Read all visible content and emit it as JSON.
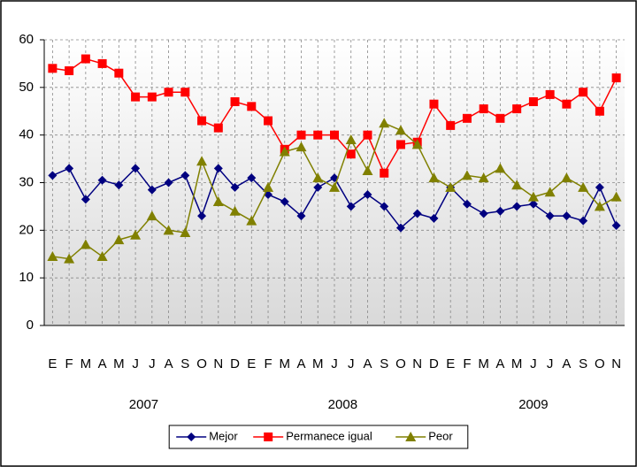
{
  "chart_data": {
    "type": "line",
    "categories": [
      "E",
      "F",
      "M",
      "A",
      "M",
      "J",
      "J",
      "A",
      "S",
      "O",
      "N",
      "D",
      "E",
      "F",
      "M",
      "A",
      "M",
      "J",
      "J",
      "A",
      "S",
      "O",
      "N",
      "D",
      "E",
      "F",
      "M",
      "A",
      "M",
      "J",
      "J",
      "A",
      "S",
      "O",
      "N"
    ],
    "x_groups": [
      "2007",
      "2008",
      "2009"
    ],
    "ylim": [
      0,
      60
    ],
    "yticks": [
      0,
      10,
      20,
      30,
      40,
      50,
      60
    ],
    "grid": true,
    "legend": "bottom",
    "series": [
      {
        "name": "Mejor",
        "color": "#000080",
        "marker": "diamond",
        "values": [
          31.5,
          33,
          26.5,
          30.5,
          29.5,
          33,
          28.5,
          30,
          31.5,
          23,
          33,
          29,
          31,
          27.5,
          26,
          23,
          29,
          31,
          25,
          27.5,
          25,
          20.5,
          23.5,
          22.5,
          29,
          25.5,
          23.5,
          24,
          25,
          25.5,
          23,
          23,
          22,
          29,
          21
        ]
      },
      {
        "name": "Permanece igual",
        "color": "#ff0000",
        "marker": "square",
        "values": [
          54,
          53.5,
          56,
          55,
          53,
          48,
          48,
          49,
          49,
          43,
          41.5,
          47,
          46,
          43,
          37,
          40,
          40,
          40,
          36,
          40,
          32,
          38,
          38.5,
          46.5,
          42,
          43.5,
          45.5,
          43.5,
          45.5,
          47,
          48.5,
          46.5,
          49,
          45,
          52
        ]
      },
      {
        "name": "Peor",
        "color": "#808000",
        "marker": "triangle",
        "values": [
          14.5,
          14,
          17,
          14.5,
          18,
          19,
          23,
          20,
          19.5,
          34.5,
          26,
          24,
          22,
          29,
          36.5,
          37.5,
          31,
          29,
          39,
          32.5,
          42.5,
          41,
          38,
          31,
          29,
          31.5,
          31,
          33,
          29.5,
          27,
          28,
          31,
          29,
          25,
          27
        ]
      }
    ]
  }
}
